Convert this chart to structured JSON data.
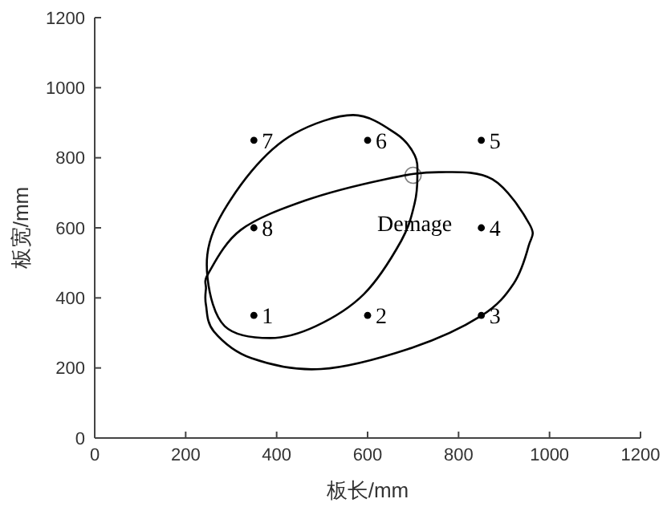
{
  "chart_data": {
    "type": "scatter",
    "xlabel": "板长/mm",
    "ylabel": "板宽/mm",
    "xlim": [
      0,
      1200
    ],
    "ylim": [
      0,
      1200
    ],
    "xticks": [
      0,
      200,
      400,
      600,
      800,
      1000,
      1200
    ],
    "yticks": [
      0,
      200,
      400,
      600,
      800,
      1000,
      1200
    ],
    "series": [
      {
        "color": "#000000",
        "marker": "circle",
        "x": [
          350,
          600,
          850,
          850,
          850,
          600,
          350,
          350
        ],
        "values": [
          350,
          350,
          350,
          600,
          850,
          850,
          850,
          600
        ]
      },
      {
        "color": "#808080",
        "marker": "circle",
        "x": [
          700
        ],
        "values": [
          750
        ]
      }
    ],
    "annotations": [
      {
        "text": "1",
        "x": 350,
        "y": 350
      },
      {
        "text": "2",
        "x": 600,
        "y": 350
      },
      {
        "text": "3",
        "x": 850,
        "y": 350
      },
      {
        "text": "4",
        "x": 850,
        "y": 600
      },
      {
        "text": "5",
        "x": 850,
        "y": 850
      },
      {
        "text": "6",
        "x": 600,
        "y": 850
      },
      {
        "text": "7",
        "x": 350,
        "y": 850
      },
      {
        "text": "8",
        "x": 350,
        "y": 600
      },
      "Demage"
    ]
  }
}
